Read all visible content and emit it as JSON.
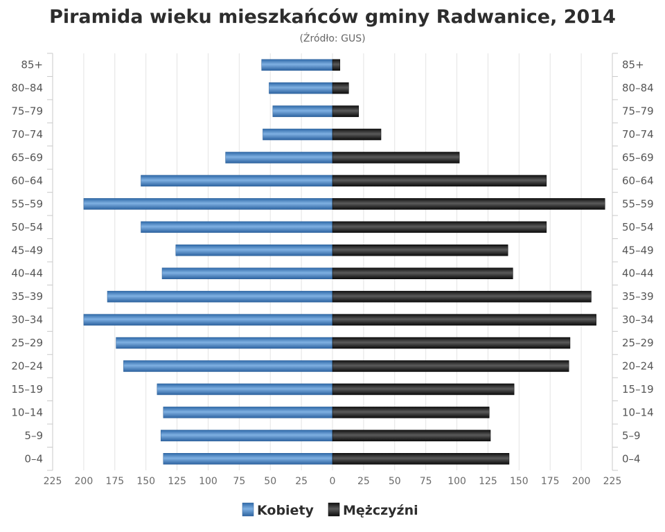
{
  "chart_data": {
    "type": "bar",
    "orientation": "horizontal-population-pyramid",
    "title": "Piramida wieku mieszkańców gminy Radwanice, 2014",
    "subtitle": "(Źródło: GUS)",
    "categories": [
      "0–4",
      "5–9",
      "10–14",
      "15–19",
      "20–24",
      "25–29",
      "30–34",
      "35–39",
      "40–44",
      "45–49",
      "50–54",
      "55–59",
      "60–64",
      "65–69",
      "70–74",
      "75–79",
      "80–84",
      "85+"
    ],
    "series": [
      {
        "name": "Kobiety",
        "side": "left",
        "color": "#3a78b8",
        "values": [
          136,
          138,
          136,
          141,
          168,
          174,
          200,
          181,
          137,
          126,
          154,
          200,
          154,
          86,
          56,
          48,
          51,
          57
        ]
      },
      {
        "name": "Mężczyźni",
        "side": "right",
        "color": "#1a1a1a",
        "values": [
          142,
          127,
          126,
          146,
          190,
          191,
          212,
          208,
          145,
          141,
          172,
          219,
          172,
          102,
          39,
          21,
          13,
          6
        ]
      }
    ],
    "x_ticks": [
      "225",
      "200",
      "175",
      "150",
      "125",
      "100",
      "75",
      "50",
      "25",
      "0",
      "25",
      "50",
      "75",
      "100",
      "125",
      "150",
      "175",
      "200",
      "225"
    ],
    "xlim": [
      -225,
      225
    ],
    "grid": true,
    "legend_position": "bottom-center"
  }
}
